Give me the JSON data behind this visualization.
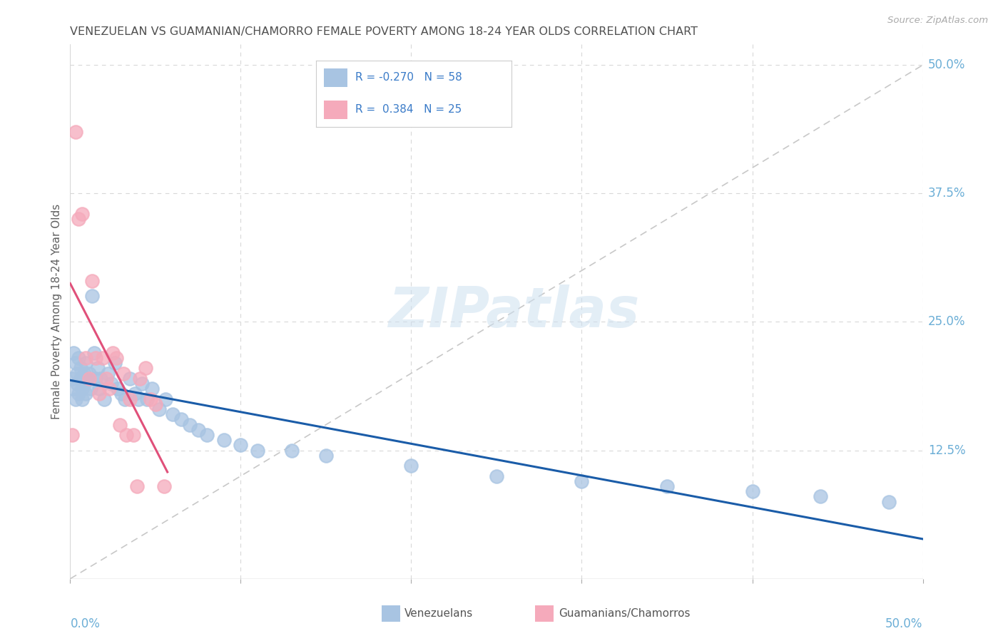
{
  "title": "VENEZUELAN VS GUAMANIAN/CHAMORRO FEMALE POVERTY AMONG 18-24 YEAR OLDS CORRELATION CHART",
  "source": "Source: ZipAtlas.com",
  "ylabel": "Female Poverty Among 18-24 Year Olds",
  "legend_r1": "R = -0.270",
  "legend_n1": "N = 58",
  "legend_r2": "R =  0.384",
  "legend_n2": "N = 25",
  "venezuelan_color": "#a8c4e2",
  "guamanian_color": "#f5aabb",
  "trend_blue": "#1a5ca8",
  "trend_pink": "#e0507a",
  "trend_diagonal": "#c8c8c8",
  "background_color": "#ffffff",
  "grid_color": "#d8d8d8",
  "title_color": "#505050",
  "right_label_color": "#6baed6",
  "axis_label_color": "#6baed6",
  "venezuelan_x": [
    0.001,
    0.002,
    0.002,
    0.003,
    0.003,
    0.004,
    0.004,
    0.005,
    0.005,
    0.006,
    0.006,
    0.007,
    0.007,
    0.008,
    0.008,
    0.009,
    0.009,
    0.01,
    0.011,
    0.012,
    0.013,
    0.014,
    0.015,
    0.016,
    0.017,
    0.018,
    0.02,
    0.022,
    0.024,
    0.026,
    0.028,
    0.03,
    0.032,
    0.035,
    0.038,
    0.04,
    0.042,
    0.045,
    0.048,
    0.052,
    0.056,
    0.06,
    0.065,
    0.07,
    0.075,
    0.08,
    0.09,
    0.1,
    0.11,
    0.13,
    0.15,
    0.2,
    0.25,
    0.3,
    0.35,
    0.4,
    0.44,
    0.48
  ],
  "venezuelan_y": [
    0.195,
    0.185,
    0.22,
    0.175,
    0.21,
    0.2,
    0.19,
    0.18,
    0.215,
    0.195,
    0.205,
    0.185,
    0.175,
    0.2,
    0.19,
    0.18,
    0.21,
    0.195,
    0.2,
    0.185,
    0.275,
    0.22,
    0.195,
    0.205,
    0.185,
    0.195,
    0.175,
    0.2,
    0.19,
    0.21,
    0.185,
    0.18,
    0.175,
    0.195,
    0.18,
    0.175,
    0.19,
    0.175,
    0.185,
    0.165,
    0.175,
    0.16,
    0.155,
    0.15,
    0.145,
    0.14,
    0.135,
    0.13,
    0.125,
    0.125,
    0.12,
    0.11,
    0.1,
    0.095,
    0.09,
    0.085,
    0.08,
    0.075
  ],
  "guamanian_x": [
    0.001,
    0.003,
    0.005,
    0.007,
    0.009,
    0.011,
    0.013,
    0.015,
    0.017,
    0.019,
    0.021,
    0.023,
    0.025,
    0.027,
    0.029,
    0.031,
    0.033,
    0.035,
    0.037,
    0.039,
    0.041,
    0.044,
    0.047,
    0.05,
    0.055
  ],
  "guamanian_y": [
    0.14,
    0.435,
    0.35,
    0.355,
    0.215,
    0.195,
    0.29,
    0.215,
    0.18,
    0.215,
    0.195,
    0.185,
    0.22,
    0.215,
    0.15,
    0.2,
    0.14,
    0.175,
    0.14,
    0.09,
    0.195,
    0.205,
    0.175,
    0.17,
    0.09
  ],
  "xlim": [
    0.0,
    0.5
  ],
  "ylim": [
    0.0,
    0.52
  ]
}
